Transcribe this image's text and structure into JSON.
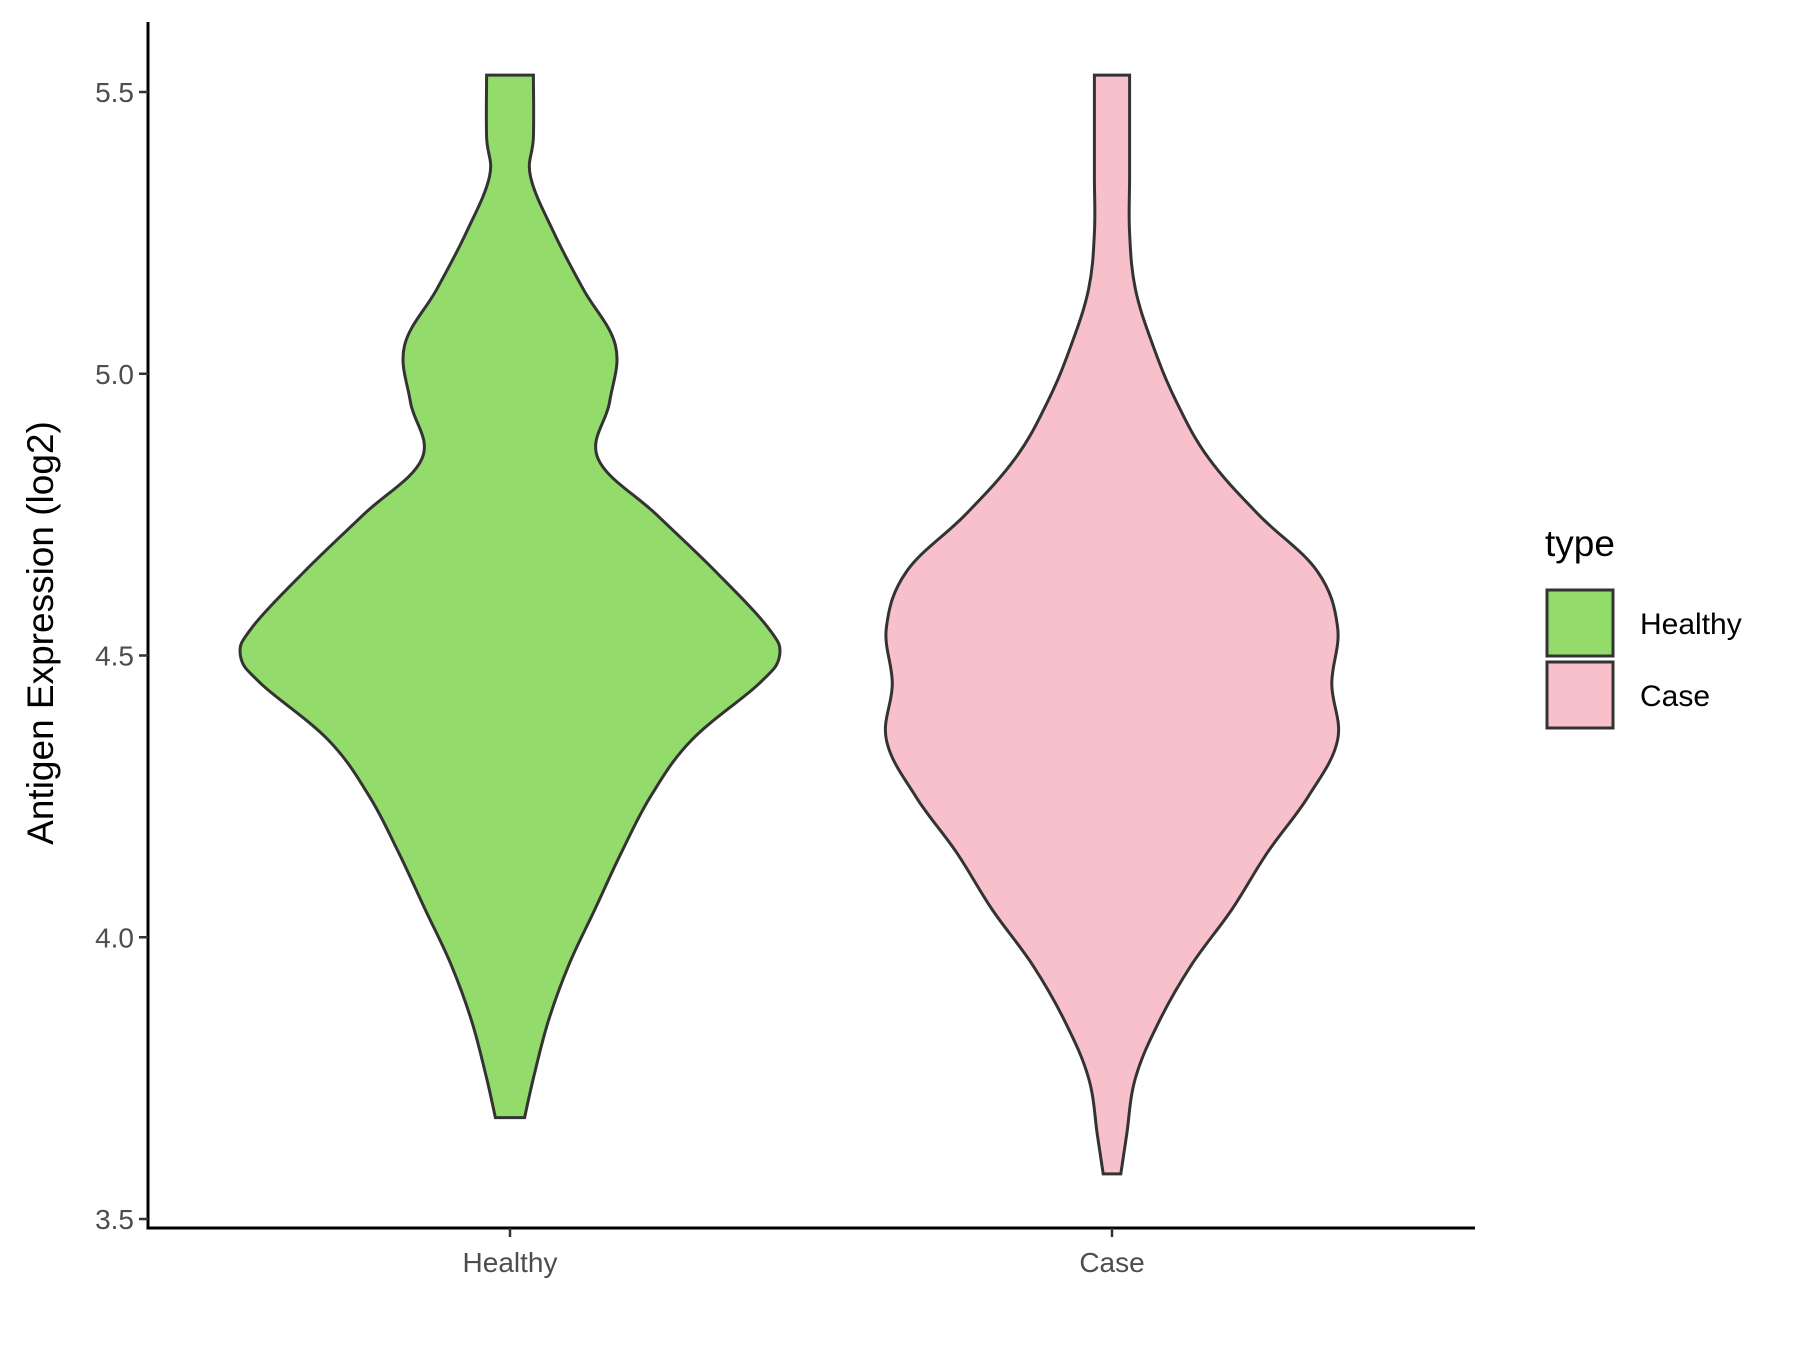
{
  "chart_data": {
    "type": "violin",
    "title": "",
    "xlabel": "",
    "ylabel": "Antigen Expression (log2)",
    "ylim": [
      3.5,
      5.6
    ],
    "yticks": [
      "3.5",
      "4.0",
      "4.5",
      "5.0",
      "5.5"
    ],
    "categories": [
      "Healthy",
      "Case"
    ],
    "legend": {
      "title": "type",
      "position": "right",
      "entries": [
        "Healthy",
        "Case"
      ]
    },
    "series": [
      {
        "name": "Healthy",
        "color": "#93DB6A",
        "min": 3.68,
        "max": 5.53,
        "density": [
          [
            3.68,
            0.05
          ],
          [
            3.75,
            0.08
          ],
          [
            3.85,
            0.13
          ],
          [
            3.95,
            0.2
          ],
          [
            4.05,
            0.29
          ],
          [
            4.15,
            0.38
          ],
          [
            4.25,
            0.48
          ],
          [
            4.35,
            0.62
          ],
          [
            4.45,
            0.85
          ],
          [
            4.5,
            0.92
          ],
          [
            4.55,
            0.88
          ],
          [
            4.65,
            0.7
          ],
          [
            4.75,
            0.5
          ],
          [
            4.85,
            0.3
          ],
          [
            4.95,
            0.34
          ],
          [
            5.05,
            0.36
          ],
          [
            5.15,
            0.25
          ],
          [
            5.25,
            0.15
          ],
          [
            5.35,
            0.07
          ],
          [
            5.42,
            0.08
          ],
          [
            5.53,
            0.08
          ]
        ]
      },
      {
        "name": "Case",
        "color": "#F7C0CB",
        "min": 3.58,
        "max": 5.53,
        "density": [
          [
            3.58,
            0.03
          ],
          [
            3.65,
            0.05
          ],
          [
            3.75,
            0.08
          ],
          [
            3.85,
            0.16
          ],
          [
            3.95,
            0.27
          ],
          [
            4.05,
            0.41
          ],
          [
            4.15,
            0.53
          ],
          [
            4.25,
            0.67
          ],
          [
            4.35,
            0.77
          ],
          [
            4.45,
            0.75
          ],
          [
            4.55,
            0.77
          ],
          [
            4.65,
            0.7
          ],
          [
            4.75,
            0.5
          ],
          [
            4.85,
            0.33
          ],
          [
            4.95,
            0.22
          ],
          [
            5.05,
            0.14
          ],
          [
            5.15,
            0.08
          ],
          [
            5.25,
            0.06
          ],
          [
            5.35,
            0.06
          ],
          [
            5.45,
            0.06
          ],
          [
            5.53,
            0.06
          ]
        ]
      }
    ]
  }
}
